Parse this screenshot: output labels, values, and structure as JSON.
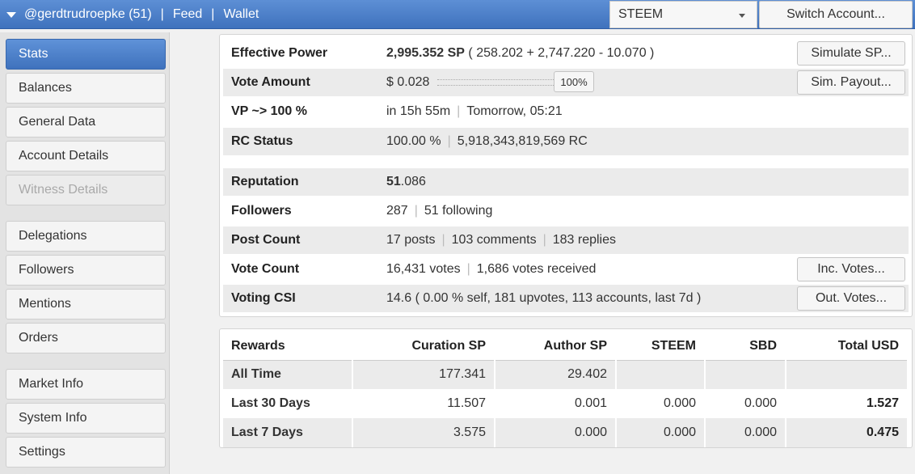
{
  "topbar": {
    "account": "@gerdtrudroepke (51)",
    "sep": "|",
    "feed": "Feed",
    "wallet": "Wallet",
    "chain_select": "STEEM",
    "switch_button": "Switch Account..."
  },
  "sidebar": {
    "items": [
      {
        "label": "Stats"
      },
      {
        "label": "Balances"
      },
      {
        "label": "General Data"
      },
      {
        "label": "Account Details"
      },
      {
        "label": "Witness Details"
      },
      {
        "label": "Delegations"
      },
      {
        "label": "Followers"
      },
      {
        "label": "Mentions"
      },
      {
        "label": "Orders"
      },
      {
        "label": "Market Info"
      },
      {
        "label": "System Info"
      },
      {
        "label": "Settings"
      }
    ]
  },
  "stats": {
    "effective_power": {
      "label": "Effective Power",
      "value_bold": "2,995.352 SP",
      "value_rest": " ( 258.202 + 2,747.220 - 10.070 )",
      "button": "Simulate SP..."
    },
    "vote_amount": {
      "label": "Vote Amount",
      "value": "$ 0.028",
      "slider_value": "100%",
      "button": "Sim. Payout..."
    },
    "vp": {
      "label": "VP ~> 100 %",
      "value1": "in 15h 55m",
      "value2": "Tomorrow, 05:21"
    },
    "rc_status": {
      "label": "RC Status",
      "value1": "100.00 %",
      "value2": "5,918,343,819,569 RC"
    },
    "reputation": {
      "label": "Reputation",
      "value_bold": "51",
      "value_rest": ".086"
    },
    "followers": {
      "label": "Followers",
      "value1": "287",
      "value2": "51 following"
    },
    "post_count": {
      "label": "Post Count",
      "value1": "17 posts",
      "value2": "103 comments",
      "value3": "183 replies"
    },
    "vote_count": {
      "label": "Vote Count",
      "value1": "16,431 votes",
      "value2": "1,686 votes received",
      "button": "Inc. Votes..."
    },
    "voting_csi": {
      "label": "Voting CSI",
      "value": "14.6 ( 0.00 % self, 181 upvotes, 113 accounts, last 7d )",
      "button": "Out. Votes..."
    },
    "pipe": "|"
  },
  "rewards": {
    "headers": [
      "Rewards",
      "Curation SP",
      "Author SP",
      "STEEM",
      "SBD",
      "Total USD"
    ],
    "rows": [
      [
        "All Time",
        "177.341",
        "29.402",
        "",
        "",
        ""
      ],
      [
        "Last 30 Days",
        "11.507",
        "0.001",
        "0.000",
        "0.000",
        "1.527"
      ],
      [
        "Last 7 Days",
        "3.575",
        "0.000",
        "0.000",
        "0.000",
        "0.475"
      ]
    ]
  }
}
